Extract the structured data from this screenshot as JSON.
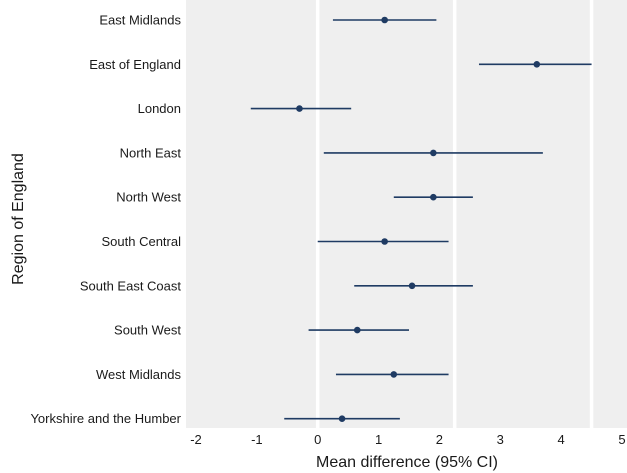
{
  "chart_data": {
    "type": "forest",
    "xlabel": "Mean difference (95% CI)",
    "ylabel": "Region of England",
    "xlim": [
      -2,
      5
    ],
    "xticks": [
      -2,
      -1,
      0,
      1,
      2,
      3,
      4,
      5
    ],
    "reference_lines": [
      0,
      2.25,
      4.5
    ],
    "grid": false,
    "colors": {
      "panel": "#efefef",
      "point": "#1f3b63",
      "interval": "#1f3b63",
      "reference_line": "#ffffff"
    },
    "categories": [
      "East Midlands",
      "East of England",
      "London",
      "North East",
      "North West",
      "South Central",
      "South East Coast",
      "South West",
      "West Midlands",
      "Yorkshire and the Humber"
    ],
    "estimates": [
      1.1,
      3.6,
      -0.3,
      1.9,
      1.9,
      1.1,
      1.55,
      0.65,
      1.25,
      0.4
    ],
    "ci_low": [
      0.25,
      2.65,
      -1.1,
      0.1,
      1.25,
      0.0,
      0.6,
      -0.15,
      0.3,
      -0.55
    ],
    "ci_high": [
      1.95,
      4.5,
      0.55,
      3.7,
      2.55,
      2.15,
      2.55,
      1.5,
      2.15,
      1.35
    ]
  }
}
